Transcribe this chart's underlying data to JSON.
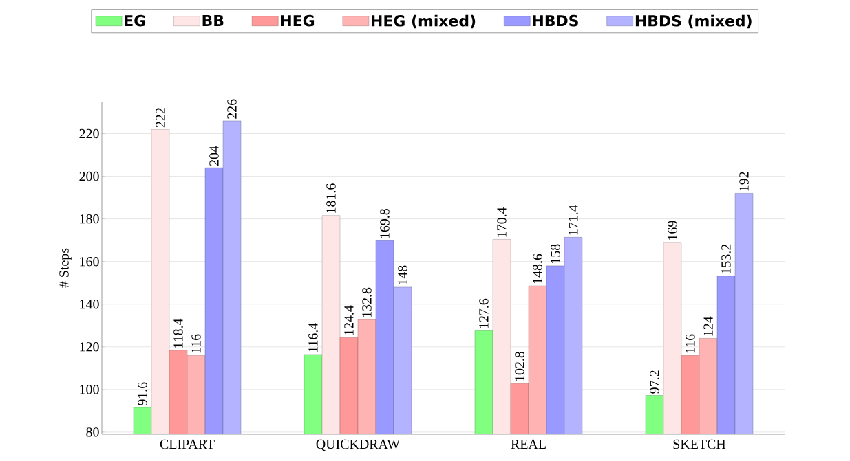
{
  "chart_data": {
    "type": "bar",
    "ylabel": "# Steps",
    "categories": [
      "CLIPART",
      "QUICKDRAW",
      "REAL",
      "SKETCH"
    ],
    "series": [
      {
        "name": "EG",
        "color": "#80ff80",
        "values": [
          91.6,
          116.4,
          127.6,
          97.2
        ]
      },
      {
        "name": "BB",
        "color": "#ffe6e6",
        "values": [
          222,
          181.6,
          170.4,
          169
        ]
      },
      {
        "name": "HEG",
        "color": "#ff9999",
        "values": [
          118.4,
          124.4,
          102.8,
          116
        ]
      },
      {
        "name": "HEG (mixed)",
        "color": "#ffb3b3",
        "values": [
          116,
          132.8,
          148.6,
          124
        ]
      },
      {
        "name": "HBDS",
        "color": "#9999ff",
        "values": [
          204,
          169.8,
          158,
          153.2
        ]
      },
      {
        "name": "HBDS (mixed)",
        "color": "#b3b3ff",
        "values": [
          226,
          148,
          171.4,
          192
        ]
      }
    ],
    "ylim": [
      79,
      235
    ],
    "yticks": [
      80,
      100,
      120,
      140,
      160,
      180,
      200,
      220
    ],
    "grid": "y",
    "legend": "top",
    "data_labels": true
  }
}
